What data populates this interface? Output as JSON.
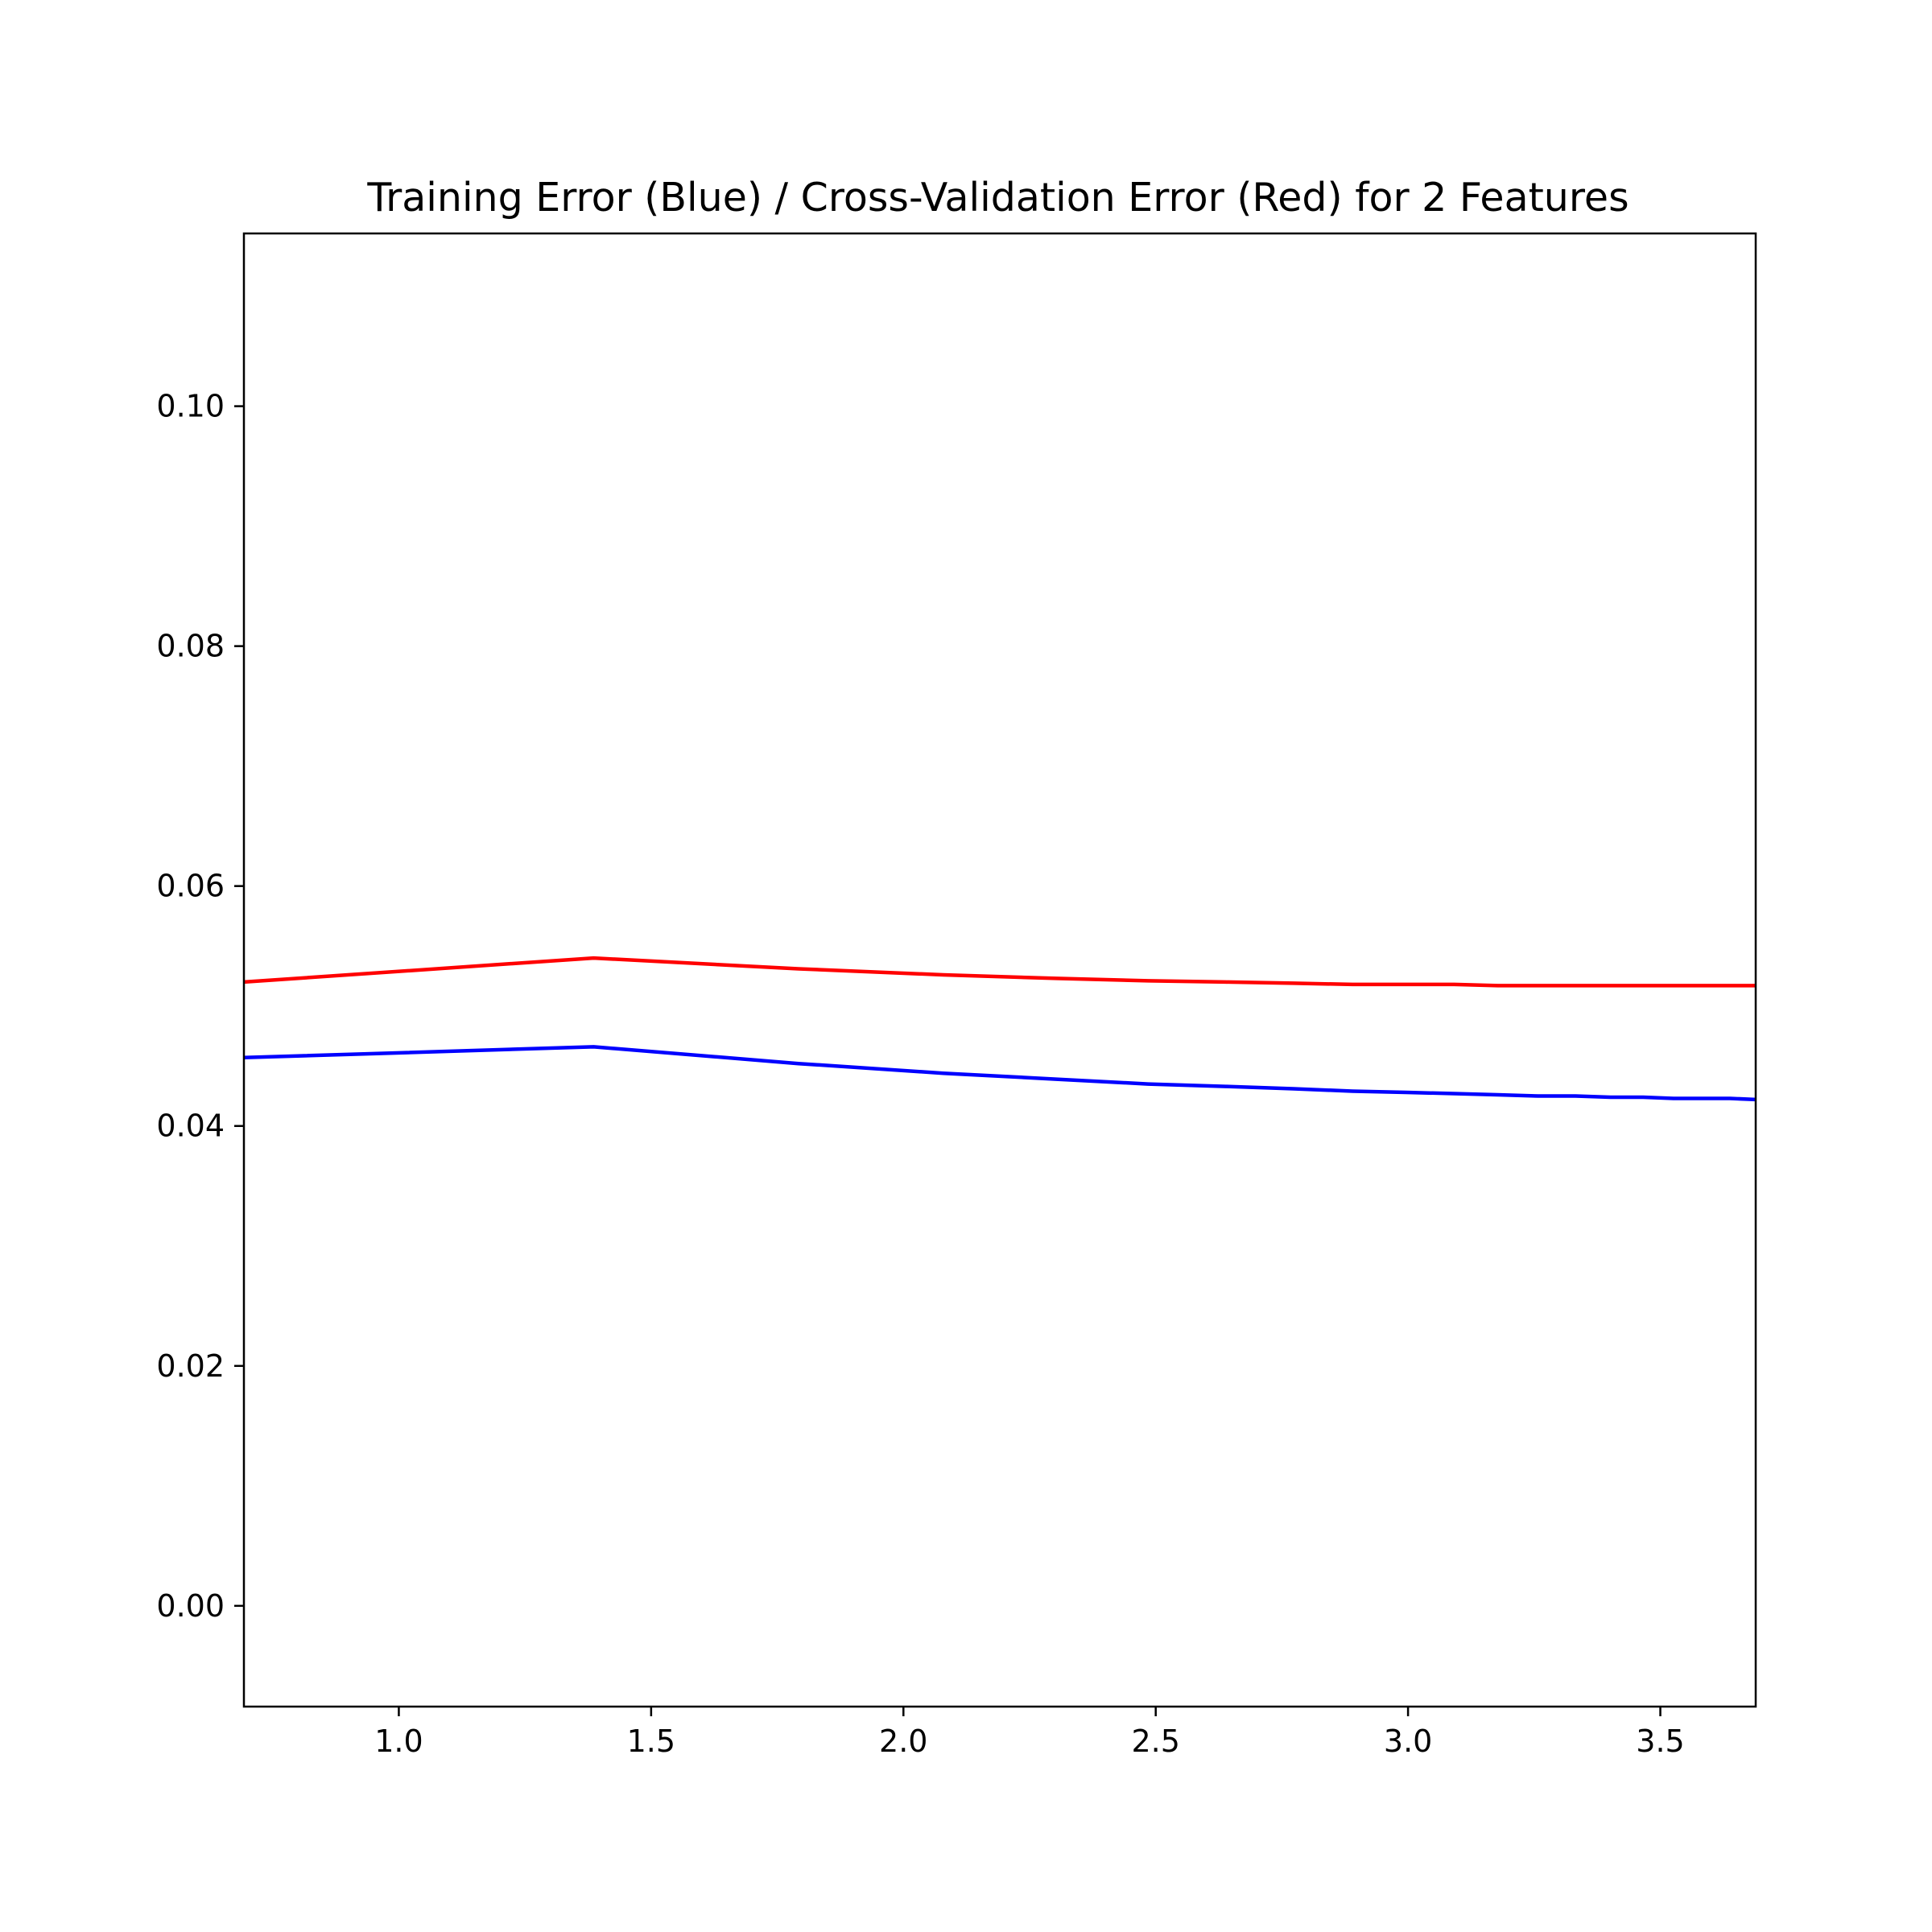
{
  "chart_data": {
    "type": "line",
    "title": "Training Error (Blue) / Cross-Validation Error (Red) for 2 Features",
    "xlabel": "",
    "ylabel": "",
    "xlim": [
      0.693,
      3.689
    ],
    "ylim": [
      -0.0084,
      0.1144
    ],
    "grid": false,
    "x_ticks": [
      1.0,
      1.5,
      2.0,
      2.5,
      3.0,
      3.5
    ],
    "x_tick_labels": [
      "1.0",
      "1.5",
      "2.0",
      "2.5",
      "3.0",
      "3.5"
    ],
    "y_ticks": [
      0.0,
      0.02,
      0.04,
      0.06,
      0.08,
      0.1
    ],
    "y_tick_labels": [
      "0.00",
      "0.02",
      "0.04",
      "0.06",
      "0.08",
      "0.10"
    ],
    "series": [
      {
        "color": "#ff0000",
        "x": [
          0.693,
          1.386,
          1.792,
          2.079,
          2.303,
          2.485,
          2.639,
          2.773,
          2.89,
          2.996,
          3.091,
          3.178,
          3.258,
          3.332,
          3.401,
          3.466,
          3.526,
          3.584,
          3.638,
          3.689
        ],
        "y": [
          0.052,
          0.054,
          0.0531,
          0.0526,
          0.0523,
          0.0521,
          0.052,
          0.0519,
          0.0518,
          0.0518,
          0.0518,
          0.0517,
          0.0517,
          0.0517,
          0.0517,
          0.0517,
          0.0517,
          0.0517,
          0.0517,
          0.0517
        ]
      },
      {
        "color": "#0000ff",
        "x": [
          0.693,
          1.386,
          1.792,
          2.079,
          2.303,
          2.485,
          2.639,
          2.773,
          2.89,
          2.996,
          3.091,
          3.178,
          3.258,
          3.332,
          3.401,
          3.466,
          3.526,
          3.584,
          3.638,
          3.689
        ],
        "y": [
          0.0457,
          0.0466,
          0.0452,
          0.0444,
          0.0439,
          0.0435,
          0.0433,
          0.0431,
          0.0429,
          0.0428,
          0.0427,
          0.0426,
          0.0425,
          0.0425,
          0.0424,
          0.0424,
          0.0423,
          0.0423,
          0.0423,
          0.0422
        ]
      }
    ]
  }
}
